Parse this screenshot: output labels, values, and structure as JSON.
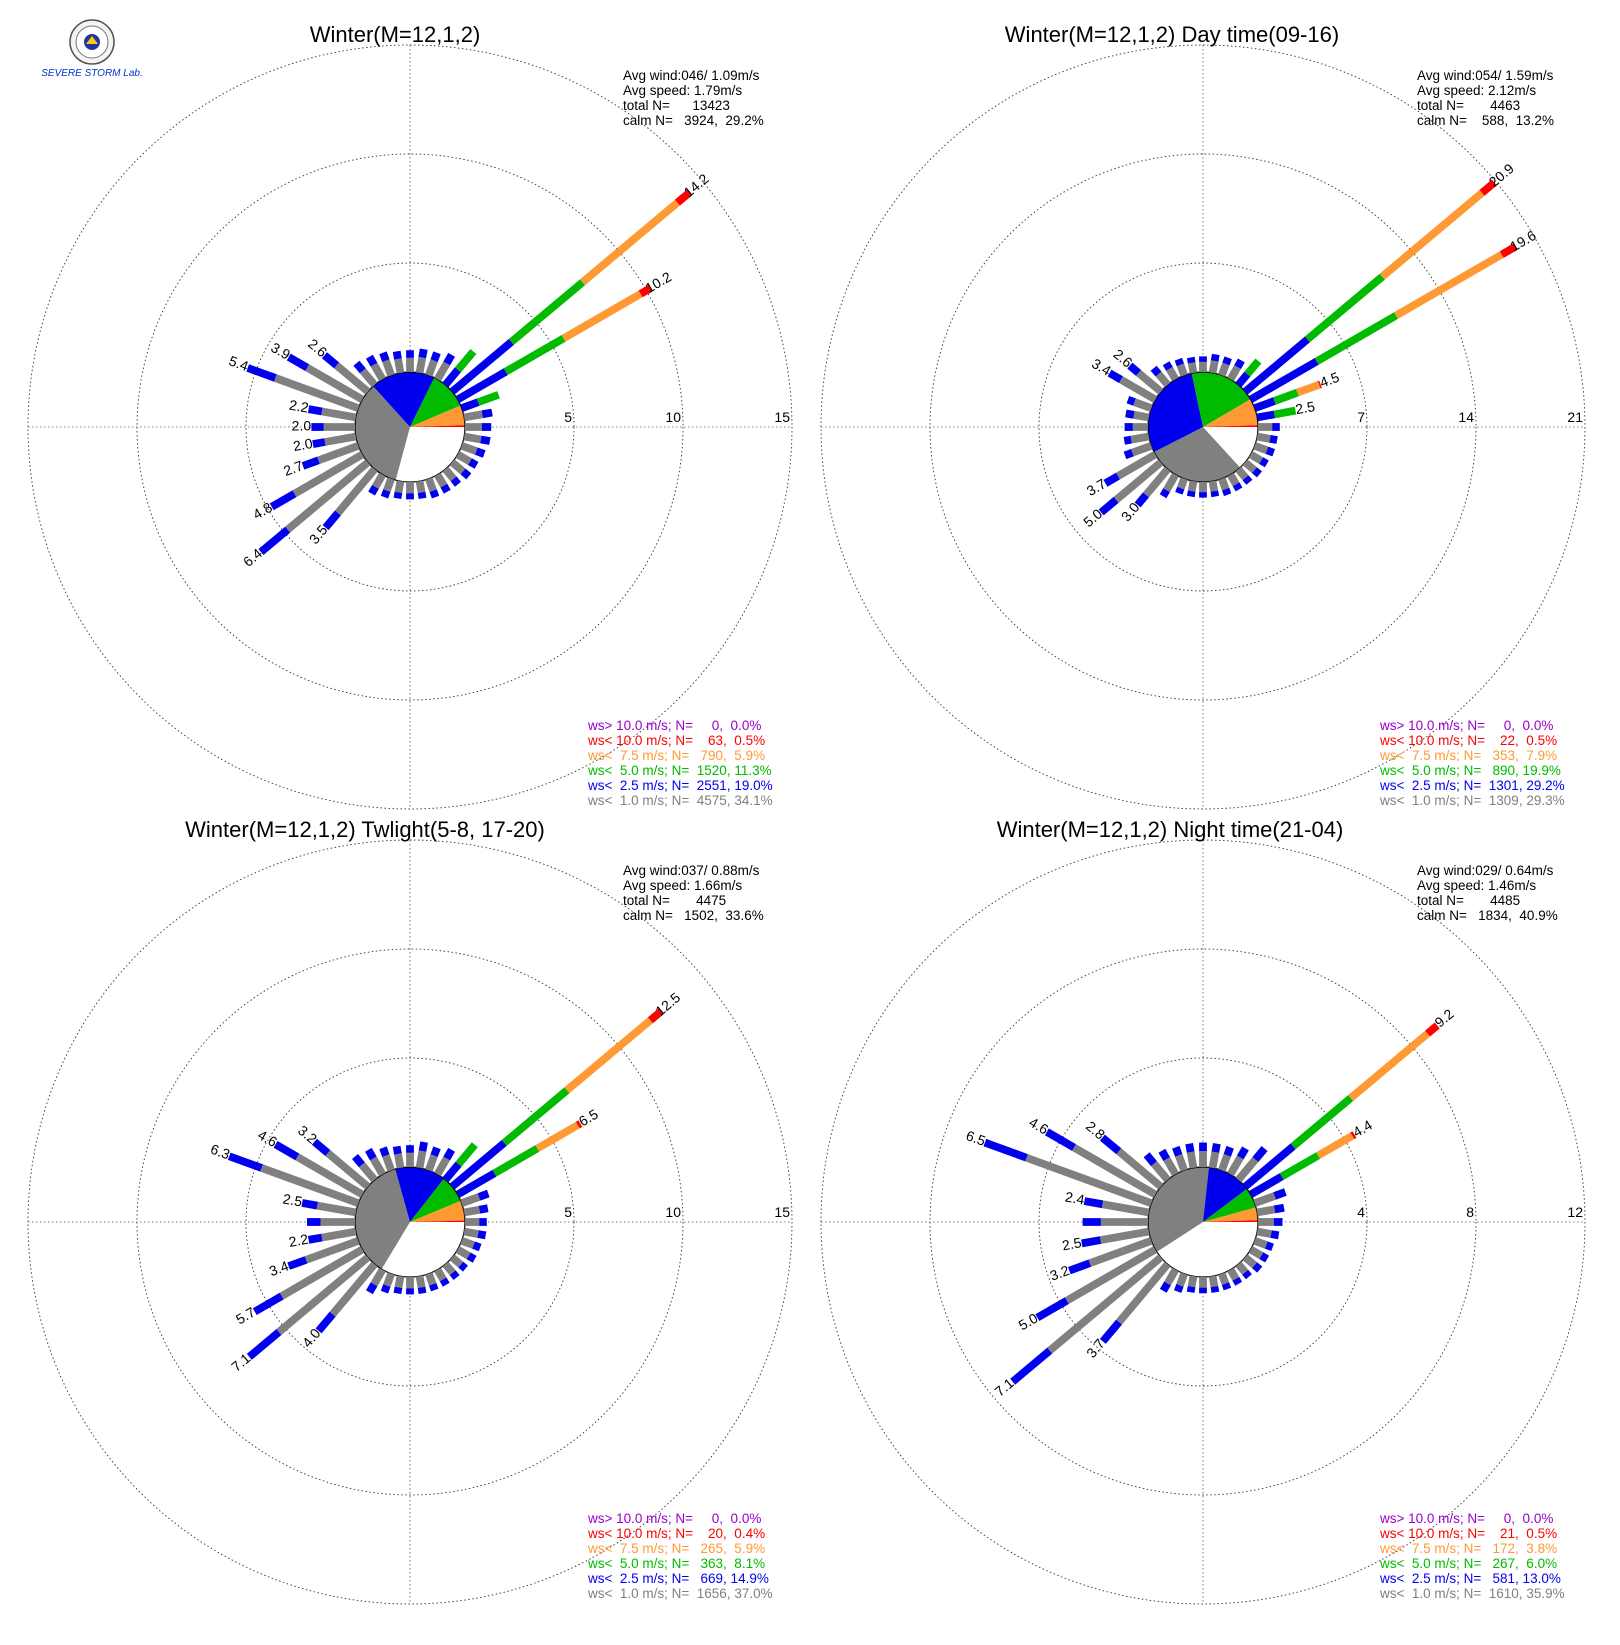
{
  "figure": {
    "logo_text": "SEVERE STORM Lab."
  },
  "colors": {
    "calm": "#808080",
    "b1": "#0000ee",
    "b2": "#00bb00",
    "b3": "#ff9933",
    "b4": "#ff0000",
    "b5": "#9900cc"
  },
  "chart_data": [
    {
      "type": "windrose",
      "title": "Winter(M=12,1,2)",
      "stats": [
        "Avg wind:046/ 1.09m/s",
        "Avg speed: 1.79m/s",
        "total N=      13423",
        "calm N=   3924,  29.2%"
      ],
      "rmax": 15,
      "ring_labels": [
        "5",
        "10",
        "15"
      ],
      "pie": [
        29.2,
        34.1,
        19.0,
        11.3,
        5.9,
        0.5
      ],
      "bars": [
        {
          "dir": 0,
          "total": 1.0
        },
        {
          "dir": 10,
          "total": 1.1
        },
        {
          "dir": 20,
          "total": 1.1
        },
        {
          "dir": 30,
          "total": 1.3
        },
        {
          "dir": 40,
          "total": 2.0
        },
        {
          "dir": 50,
          "total": 14.2,
          "label": "14.2"
        },
        {
          "dir": 60,
          "total": 10.2,
          "label": "10.2"
        },
        {
          "dir": 70,
          "total": 1.8
        },
        {
          "dir": 80,
          "total": 1.3
        },
        {
          "dir": 90,
          "total": 1.2
        },
        {
          "dir": 100,
          "total": 1.2
        },
        {
          "dir": 110,
          "total": 1.1
        },
        {
          "dir": 120,
          "total": 1.0
        },
        {
          "dir": 130,
          "total": 1.0
        },
        {
          "dir": 140,
          "total": 0.9
        },
        {
          "dir": 150,
          "total": 0.9
        },
        {
          "dir": 160,
          "total": 0.9
        },
        {
          "dir": 170,
          "total": 0.8
        },
        {
          "dir": 180,
          "total": 0.8
        },
        {
          "dir": 190,
          "total": 0.8
        },
        {
          "dir": 200,
          "total": 0.9
        },
        {
          "dir": 210,
          "total": 1.0
        },
        {
          "dir": 220,
          "total": 3.5,
          "label": "3.5"
        },
        {
          "dir": 230,
          "total": 6.4,
          "label": "6.4"
        },
        {
          "dir": 240,
          "total": 4.8,
          "label": "4.8"
        },
        {
          "dir": 250,
          "total": 2.7,
          "label": "2.7"
        },
        {
          "dir": 260,
          "total": 2.0,
          "label": "2.0"
        },
        {
          "dir": 270,
          "total": 2.0,
          "label": "2.0"
        },
        {
          "dir": 280,
          "total": 2.2,
          "label": "2.2"
        },
        {
          "dir": 290,
          "total": 5.4,
          "label": "5.4"
        },
        {
          "dir": 300,
          "total": 3.9,
          "label": "3.9"
        },
        {
          "dir": 310,
          "total": 2.6,
          "label": "2.6"
        },
        {
          "dir": 320,
          "total": 1.3
        },
        {
          "dir": 330,
          "total": 1.2
        },
        {
          "dir": 340,
          "total": 1.1
        },
        {
          "dir": 350,
          "total": 1.0
        }
      ],
      "legend": [
        {
          "text": "ws> 10.0 m/s; N=     0,  0.0%",
          "color": "#9900cc"
        },
        {
          "text": "ws< 10.0 m/s; N=    63,  0.5%",
          "color": "#ff0000"
        },
        {
          "text": "ws<  7.5 m/s; N=   790,  5.9%",
          "color": "#ff9933"
        },
        {
          "text": "ws<  5.0 m/s; N=  1520, 11.3%",
          "color": "#00bb00"
        },
        {
          "text": "ws<  2.5 m/s; N=  2551, 19.0%",
          "color": "#0000ee"
        },
        {
          "text": "ws<  1.0 m/s; N=  4575, 34.1%",
          "color": "#808080"
        }
      ]
    },
    {
      "type": "windrose",
      "title": "Winter(M=12,1,2) Day time(09-16)",
      "stats": [
        "Avg wind:054/ 1.59m/s",
        "Avg speed: 2.12m/s",
        "total N=       4463",
        "calm N=    588,  13.2%"
      ],
      "rmax": 21,
      "ring_labels": [
        "7",
        "14",
        "21"
      ],
      "pie": [
        13.2,
        29.3,
        29.2,
        19.9,
        7.9,
        0.5
      ],
      "bars": [
        {
          "dir": 0,
          "total": 1.0
        },
        {
          "dir": 10,
          "total": 1.2
        },
        {
          "dir": 20,
          "total": 1.2
        },
        {
          "dir": 30,
          "total": 1.4
        },
        {
          "dir": 40,
          "total": 2.0
        },
        {
          "dir": 50,
          "total": 20.9,
          "label": "20.9"
        },
        {
          "dir": 60,
          "total": 19.6,
          "label": "19.6"
        },
        {
          "dir": 70,
          "total": 4.5,
          "label": "4.5"
        },
        {
          "dir": 80,
          "total": 2.5,
          "label": "2.5"
        },
        {
          "dir": 90,
          "total": 1.4
        },
        {
          "dir": 100,
          "total": 1.3
        },
        {
          "dir": 110,
          "total": 1.3
        },
        {
          "dir": 120,
          "total": 1.2
        },
        {
          "dir": 130,
          "total": 1.2
        },
        {
          "dir": 140,
          "total": 1.1
        },
        {
          "dir": 150,
          "total": 1.1
        },
        {
          "dir": 160,
          "total": 1.1
        },
        {
          "dir": 170,
          "total": 1.0
        },
        {
          "dir": 180,
          "total": 1.0
        },
        {
          "dir": 190,
          "total": 1.0
        },
        {
          "dir": 200,
          "total": 1.0
        },
        {
          "dir": 210,
          "total": 1.6
        },
        {
          "dir": 220,
          "total": 3.0,
          "label": "3.0"
        },
        {
          "dir": 230,
          "total": 5.0,
          "label": "5.0"
        },
        {
          "dir": 240,
          "total": 3.7,
          "label": "3.7"
        },
        {
          "dir": 250,
          "total": 1.8
        },
        {
          "dir": 260,
          "total": 1.6
        },
        {
          "dir": 270,
          "total": 1.5
        },
        {
          "dir": 280,
          "total": 1.5
        },
        {
          "dir": 290,
          "total": 1.6
        },
        {
          "dir": 300,
          "total": 3.4,
          "label": "3.4"
        },
        {
          "dir": 310,
          "total": 2.6,
          "label": "2.6"
        },
        {
          "dir": 320,
          "total": 1.4
        },
        {
          "dir": 330,
          "total": 1.2
        },
        {
          "dir": 340,
          "total": 1.1
        },
        {
          "dir": 350,
          "total": 1.0
        }
      ],
      "legend": [
        {
          "text": "ws> 10.0 m/s; N=     0,  0.0%",
          "color": "#9900cc"
        },
        {
          "text": "ws< 10.0 m/s; N=    22,  0.5%",
          "color": "#ff0000"
        },
        {
          "text": "ws<  7.5 m/s; N=   353,  7.9%",
          "color": "#ff9933"
        },
        {
          "text": "ws<  5.0 m/s; N=   890, 19.9%",
          "color": "#00bb00"
        },
        {
          "text": "ws<  2.5 m/s; N=  1301, 29.2%",
          "color": "#0000ee"
        },
        {
          "text": "ws<  1.0 m/s; N=  1309, 29.3%",
          "color": "#808080"
        }
      ]
    },
    {
      "type": "windrose",
      "title": "Winter(M=12,1,2) Twlight(5-8, 17-20)",
      "stats": [
        "Avg wind:037/ 0.88m/s",
        "Avg speed: 1.66m/s",
        "total N=       4475",
        "calm N=   1502,  33.6%"
      ],
      "rmax": 15,
      "ring_labels": [
        "5",
        "10",
        "15"
      ],
      "pie": [
        33.6,
        37.0,
        14.9,
        8.1,
        5.9,
        0.4
      ],
      "bars": [
        {
          "dir": 0,
          "total": 1.0
        },
        {
          "dir": 10,
          "total": 1.2
        },
        {
          "dir": 20,
          "total": 1.1
        },
        {
          "dir": 30,
          "total": 1.3
        },
        {
          "dir": 40,
          "total": 2.1
        },
        {
          "dir": 50,
          "total": 12.5,
          "label": "12.5"
        },
        {
          "dir": 60,
          "total": 6.5,
          "label": "6.5"
        },
        {
          "dir": 70,
          "total": 1.3
        },
        {
          "dir": 80,
          "total": 1.1
        },
        {
          "dir": 90,
          "total": 1.0
        },
        {
          "dir": 100,
          "total": 1.0
        },
        {
          "dir": 110,
          "total": 0.9
        },
        {
          "dir": 120,
          "total": 0.9
        },
        {
          "dir": 130,
          "total": 0.8
        },
        {
          "dir": 140,
          "total": 0.8
        },
        {
          "dir": 150,
          "total": 0.8
        },
        {
          "dir": 160,
          "total": 0.8
        },
        {
          "dir": 170,
          "total": 0.8
        },
        {
          "dir": 180,
          "total": 0.8
        },
        {
          "dir": 190,
          "total": 0.8
        },
        {
          "dir": 200,
          "total": 0.9
        },
        {
          "dir": 210,
          "total": 1.2
        },
        {
          "dir": 220,
          "total": 4.0,
          "label": "4.0"
        },
        {
          "dir": 230,
          "total": 7.1,
          "label": "7.1"
        },
        {
          "dir": 240,
          "total": 5.7,
          "label": "5.7"
        },
        {
          "dir": 250,
          "total": 3.4,
          "label": "3.4"
        },
        {
          "dir": 260,
          "total": 2.2,
          "label": "2.2"
        },
        {
          "dir": 270,
          "total": 2.2
        },
        {
          "dir": 280,
          "total": 2.5,
          "label": "2.5"
        },
        {
          "dir": 290,
          "total": 6.3,
          "label": "6.3"
        },
        {
          "dir": 300,
          "total": 4.6,
          "label": "4.6"
        },
        {
          "dir": 310,
          "total": 3.2,
          "label": "3.2"
        },
        {
          "dir": 320,
          "total": 1.4
        },
        {
          "dir": 330,
          "total": 1.3
        },
        {
          "dir": 340,
          "total": 1.1
        },
        {
          "dir": 350,
          "total": 1.0
        }
      ],
      "legend": [
        {
          "text": "ws> 10.0 m/s; N=     0,  0.0%",
          "color": "#9900cc"
        },
        {
          "text": "ws< 10.0 m/s; N=    20,  0.4%",
          "color": "#ff0000"
        },
        {
          "text": "ws<  7.5 m/s; N=   265,  5.9%",
          "color": "#ff9933"
        },
        {
          "text": "ws<  5.0 m/s; N=   363,  8.1%",
          "color": "#00bb00"
        },
        {
          "text": "ws<  2.5 m/s; N=   669, 14.9%",
          "color": "#0000ee"
        },
        {
          "text": "ws<  1.0 m/s; N=  1656, 37.0%",
          "color": "#808080"
        }
      ]
    },
    {
      "type": "windrose",
      "title": "Winter(M=12,1,2) Night time(21-04)",
      "stats": [
        "Avg wind:029/ 0.64m/s",
        "Avg speed: 1.46m/s",
        "total N=       4485",
        "calm N=   1834,  40.9%"
      ],
      "rmax": 12,
      "ring_labels": [
        "4",
        "8",
        "12"
      ],
      "pie": [
        40.9,
        35.9,
        13.0,
        6.0,
        3.8,
        0.5
      ],
      "bars": [
        {
          "dir": 0,
          "total": 0.9
        },
        {
          "dir": 10,
          "total": 0.9
        },
        {
          "dir": 20,
          "total": 0.9
        },
        {
          "dir": 30,
          "total": 1.1
        },
        {
          "dir": 40,
          "total": 1.5
        },
        {
          "dir": 50,
          "total": 9.2,
          "label": "9.2"
        },
        {
          "dir": 60,
          "total": 4.4,
          "label": "4.4"
        },
        {
          "dir": 70,
          "total": 1.2
        },
        {
          "dir": 80,
          "total": 1.0
        },
        {
          "dir": 90,
          "total": 0.9
        },
        {
          "dir": 100,
          "total": 0.8
        },
        {
          "dir": 110,
          "total": 0.7
        },
        {
          "dir": 120,
          "total": 0.7
        },
        {
          "dir": 130,
          "total": 0.7
        },
        {
          "dir": 140,
          "total": 0.6
        },
        {
          "dir": 150,
          "total": 0.6
        },
        {
          "dir": 160,
          "total": 0.6
        },
        {
          "dir": 170,
          "total": 0.6
        },
        {
          "dir": 180,
          "total": 0.6
        },
        {
          "dir": 190,
          "total": 0.6
        },
        {
          "dir": 200,
          "total": 0.7
        },
        {
          "dir": 210,
          "total": 0.9
        },
        {
          "dir": 220,
          "total": 3.7,
          "label": "3.7"
        },
        {
          "dir": 230,
          "total": 7.1,
          "label": "7.1"
        },
        {
          "dir": 240,
          "total": 5.0,
          "label": "5.0"
        },
        {
          "dir": 250,
          "total": 3.2,
          "label": "3.2"
        },
        {
          "dir": 260,
          "total": 2.5,
          "label": "2.5"
        },
        {
          "dir": 270,
          "total": 2.4
        },
        {
          "dir": 280,
          "total": 2.4,
          "label": "2.4"
        },
        {
          "dir": 290,
          "total": 6.5,
          "label": "6.5"
        },
        {
          "dir": 300,
          "total": 4.6,
          "label": "4.6"
        },
        {
          "dir": 310,
          "total": 2.8,
          "label": "2.8"
        },
        {
          "dir": 320,
          "total": 1.2
        },
        {
          "dir": 330,
          "total": 1.0
        },
        {
          "dir": 340,
          "total": 0.9
        },
        {
          "dir": 350,
          "total": 0.9
        }
      ],
      "legend": [
        {
          "text": "ws> 10.0 m/s; N=     0,  0.0%",
          "color": "#9900cc"
        },
        {
          "text": "ws< 10.0 m/s; N=    21,  0.5%",
          "color": "#ff0000"
        },
        {
          "text": "ws<  7.5 m/s; N=   172,  3.8%",
          "color": "#ff9933"
        },
        {
          "text": "ws<  5.0 m/s; N=   267,  6.0%",
          "color": "#00bb00"
        },
        {
          "text": "ws<  2.5 m/s; N=   581, 13.0%",
          "color": "#0000ee"
        },
        {
          "text": "ws<  1.0 m/s; N=  1610, 35.9%",
          "color": "#808080"
        }
      ]
    }
  ]
}
